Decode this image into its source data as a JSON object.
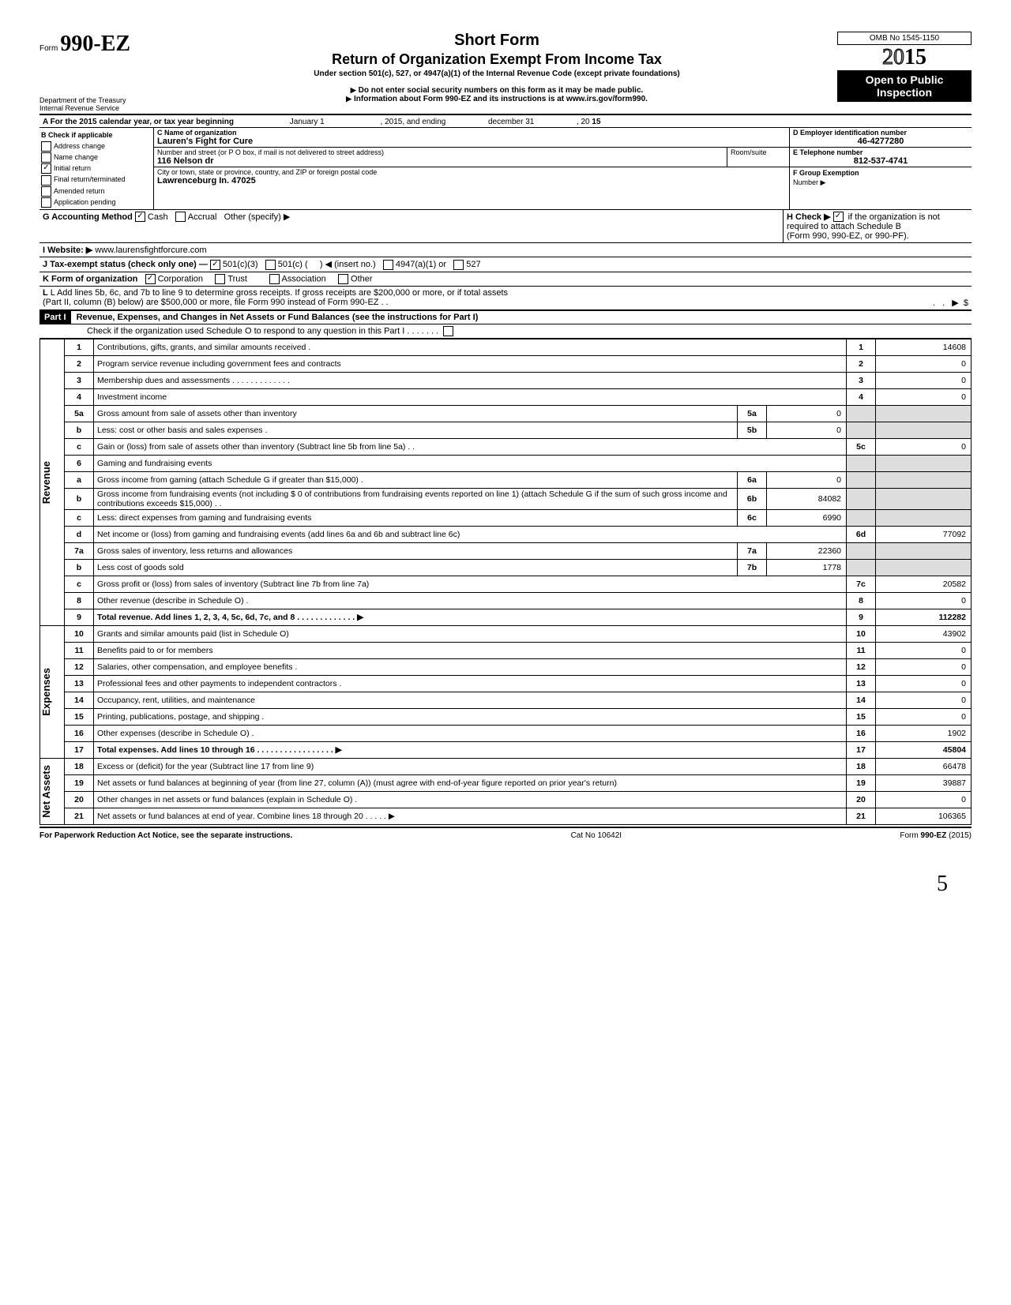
{
  "header": {
    "form_label": "Form",
    "form_number": "990-EZ",
    "short_form": "Short Form",
    "title": "Return of Organization Exempt From Income Tax",
    "subtitle": "Under section 501(c), 527, or 4947(a)(1) of the Internal Revenue Code (except private foundations)",
    "ssn_note": "Do not enter social security numbers on this form as it may be made public.",
    "info_note": "Information about Form 990-EZ and its instructions is at www.irs.gov/form990.",
    "omb": "OMB No 1545-1150",
    "year_prefix": "20",
    "year_suffix": "15",
    "open_public": "Open to Public Inspection",
    "dept": "Department of the Treasury",
    "irs": "Internal Revenue Service"
  },
  "section_a": {
    "label": "A For the 2015 calendar year, or tax year beginning",
    "begin": "January 1",
    "mid": ", 2015, and ending",
    "end": "december 31",
    "yr_lbl": ", 20",
    "yr": "15"
  },
  "section_b": {
    "title": "B Check if applicable",
    "items": [
      "Address change",
      "Name change",
      "Initial return",
      "Final return/terminated",
      "Amended return",
      "Application pending"
    ],
    "checked_idx": 2
  },
  "section_c": {
    "c_lbl": "C Name of organization",
    "name": "Lauren's Fight for Cure",
    "addr_lbl": "Number and street (or P O  box, if mail is not delivered to street address)",
    "room_lbl": "Room/suite",
    "addr": "116 Nelson dr",
    "city_lbl": "City or town, state or province, country, and ZIP or foreign postal code",
    "city": "Lawrenceburg In. 47025"
  },
  "section_d": {
    "lbl": "D Employer identification number",
    "val": "46-4277280"
  },
  "section_e": {
    "lbl": "E Telephone number",
    "val": "812-537-4741"
  },
  "section_f": {
    "lbl": "F Group Exemption",
    "num_lbl": "Number ▶"
  },
  "section_g": {
    "lbl": "G Accounting Method",
    "cash": "Cash",
    "accrual": "Accrual",
    "other": "Other (specify) ▶"
  },
  "section_h": {
    "lbl": "H Check ▶",
    "txt": "if the organization is not",
    "line2": "required to attach Schedule B",
    "line3": "(Form 990, 990-EZ, or 990-PF)."
  },
  "section_i": {
    "lbl": "I  Website: ▶",
    "val": "www.laurensfightforcure.com"
  },
  "section_j": {
    "lbl": "J Tax-exempt status (check only one) —",
    "a": "501(c)(3)",
    "b": "501(c) (",
    "c": ") ◀ (insert no.)",
    "d": "4947(a)(1) or",
    "e": "527"
  },
  "section_k": {
    "lbl": "K Form of organization",
    "corp": "Corporation",
    "trust": "Trust",
    "assoc": "Association",
    "other": "Other"
  },
  "section_l": {
    "line1": "L Add lines 5b, 6c, and 7b to line 9 to determine gross receipts. If gross receipts are $200,000 or more, or if total assets",
    "line2": "(Part II, column (B) below) are $500,000 or more, file Form 990 instead of Form 990-EZ .   .",
    "amt": "$"
  },
  "part1": {
    "hdr": "Part I",
    "title": "Revenue, Expenses, and Changes in Net Assets or Fund Balances (see the instructions for Part I)",
    "check_o": "Check if the organization used Schedule O to respond to any question in this Part I"
  },
  "sections": {
    "revenue": "Revenue",
    "expenses": "Expenses",
    "netassets": "Net Assets"
  },
  "lines": [
    {
      "n": "1",
      "d": "Contributions, gifts, grants, and similar amounts received .",
      "c": "1",
      "v": "14608"
    },
    {
      "n": "2",
      "d": "Program service revenue including government fees and contracts",
      "c": "2",
      "v": "0"
    },
    {
      "n": "3",
      "d": "Membership dues and assessments .   .   .   .   .   .   .   .   .   .   .   .   .",
      "c": "3",
      "v": "0"
    },
    {
      "n": "4",
      "d": "Investment income",
      "c": "4",
      "v": "0"
    },
    {
      "n": "5a",
      "d": "Gross amount from sale of assets other than inventory",
      "sn": "5a",
      "sv": "0"
    },
    {
      "n": "b",
      "d": "Less: cost or other basis and sales expenses .",
      "sn": "5b",
      "sv": "0"
    },
    {
      "n": "c",
      "d": "Gain or (loss) from sale of assets other than inventory (Subtract line 5b from line 5a)  .   .",
      "c": "5c",
      "v": "0"
    },
    {
      "n": "6",
      "d": "Gaming and fundraising events"
    },
    {
      "n": "a",
      "d": "Gross income from gaming (attach Schedule G if greater than $15,000) .",
      "sn": "6a",
      "sv": "0"
    },
    {
      "n": "b",
      "d": "Gross income from fundraising events (not including  $                    0 of contributions from fundraising events reported on line 1) (attach Schedule G if the sum of such gross income and contributions exceeds $15,000) .   .",
      "sn": "6b",
      "sv": "84082"
    },
    {
      "n": "c",
      "d": "Less: direct expenses from gaming and fundraising events",
      "sn": "6c",
      "sv": "6990"
    },
    {
      "n": "d",
      "d": "Net income or (loss) from gaming and fundraising events (add lines 6a and 6b and subtract line 6c)",
      "c": "6d",
      "v": "77092"
    },
    {
      "n": "7a",
      "d": "Gross sales of inventory, less returns and allowances",
      "sn": "7a",
      "sv": "22360"
    },
    {
      "n": "b",
      "d": "Less cost of goods sold",
      "sn": "7b",
      "sv": "1778"
    },
    {
      "n": "c",
      "d": "Gross profit or (loss) from sales of inventory (Subtract line 7b from line 7a)",
      "c": "7c",
      "v": "20582"
    },
    {
      "n": "8",
      "d": "Other revenue (describe in Schedule O) .",
      "c": "8",
      "v": "0"
    },
    {
      "n": "9",
      "d": "Total revenue. Add lines 1, 2, 3, 4, 5c, 6d, 7c, and 8   .   .   .   .   .   .   .   .   .   .   .   .   .   ▶",
      "c": "9",
      "v": "112282",
      "bold": true
    },
    {
      "n": "10",
      "d": "Grants and similar amounts paid (list in Schedule O)",
      "c": "10",
      "v": "43902"
    },
    {
      "n": "11",
      "d": "Benefits paid to or for members",
      "c": "11",
      "v": "0"
    },
    {
      "n": "12",
      "d": "Salaries, other compensation, and employee benefits .",
      "c": "12",
      "v": "0"
    },
    {
      "n": "13",
      "d": "Professional fees and other payments to independent contractors .",
      "c": "13",
      "v": "0"
    },
    {
      "n": "14",
      "d": "Occupancy, rent, utilities, and maintenance",
      "c": "14",
      "v": "0"
    },
    {
      "n": "15",
      "d": "Printing, publications, postage, and shipping .",
      "c": "15",
      "v": "0"
    },
    {
      "n": "16",
      "d": "Other expenses (describe in Schedule O)  .",
      "c": "16",
      "v": "1902"
    },
    {
      "n": "17",
      "d": "Total expenses. Add lines 10 through 16  .   .   .   .   .   .   .   .   .   .   .   .   .   .   .   .   .   ▶",
      "c": "17",
      "v": "45804",
      "bold": true
    },
    {
      "n": "18",
      "d": "Excess or (deficit) for the year (Subtract line 17 from line 9)",
      "c": "18",
      "v": "66478"
    },
    {
      "n": "19",
      "d": "Net assets or fund balances at beginning of year (from line 27, column (A)) (must agree with end-of-year figure reported on prior year's return)",
      "c": "19",
      "v": "39887"
    },
    {
      "n": "20",
      "d": "Other changes in net assets or fund balances (explain in Schedule O) .",
      "c": "20",
      "v": "0"
    },
    {
      "n": "21",
      "d": "Net assets or fund balances at end of year. Combine lines 18 through 20   .   .   .   .   .   ▶",
      "c": "21",
      "v": "106365"
    }
  ],
  "footer": {
    "left": "For Paperwork Reduction Act Notice, see the separate instructions.",
    "mid": "Cat  No  10642I",
    "right_a": "Form",
    "right_b": "990-EZ",
    "right_c": "(2015)"
  },
  "page_number": "5"
}
